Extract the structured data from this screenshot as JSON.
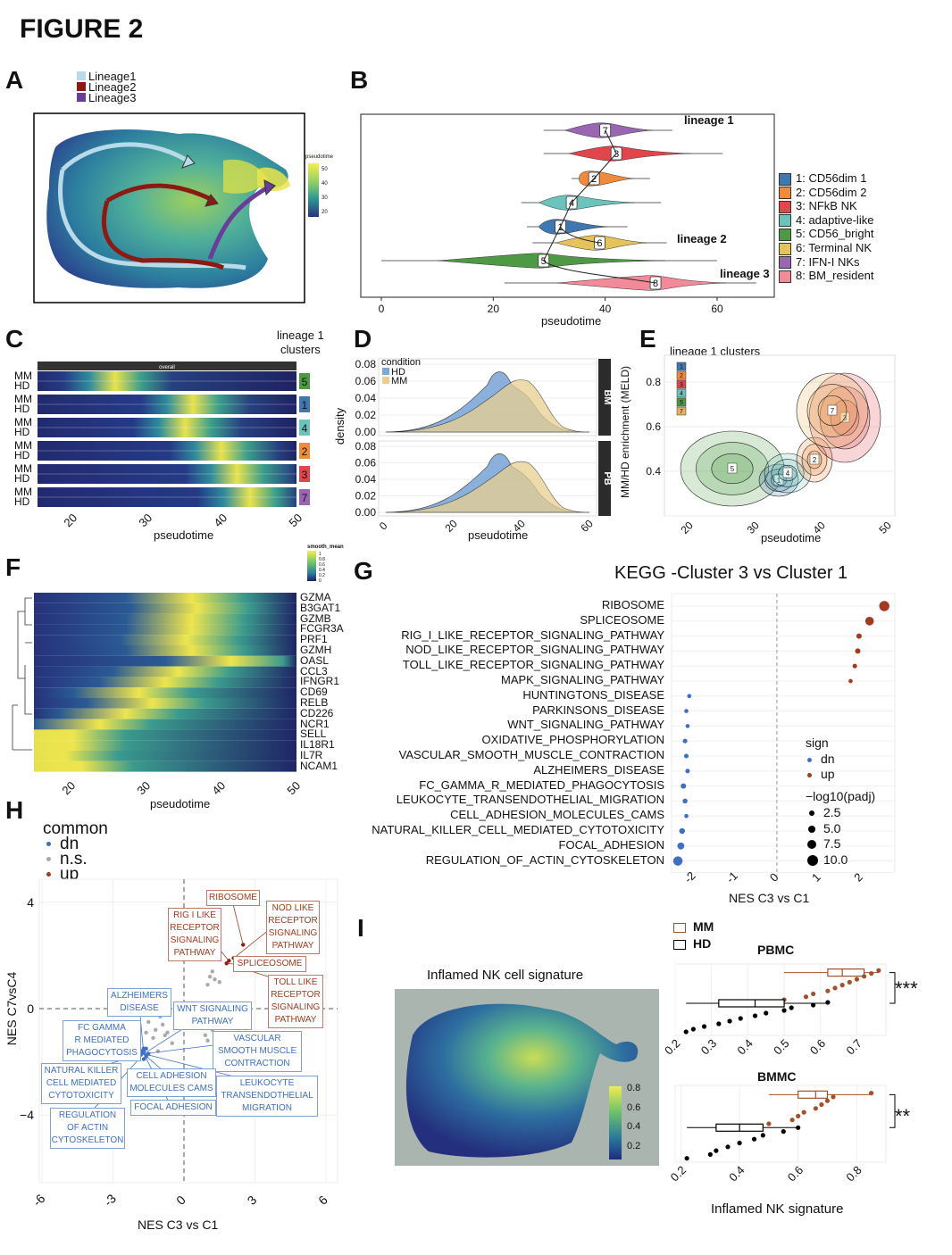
{
  "figure_title": "FIGURE 2",
  "panels": {
    "A": {
      "label": "A",
      "legend": [
        "Lineage1",
        "Lineage2",
        "Lineage3"
      ],
      "legend_colors": [
        "#b9dbe9",
        "#8b1a12",
        "#6a3d9a"
      ],
      "colorbar_title": "pseudotime",
      "colorbar_ticks": [
        "50",
        "40",
        "30",
        "20"
      ]
    },
    "B": {
      "label": "B",
      "xlabel": "pseudotime",
      "xticks": [
        "0",
        "20",
        "40",
        "60"
      ],
      "lineage_labels": [
        "lineage 1",
        "lineage 2",
        "lineage 3"
      ],
      "legend": [
        {
          "id": "1",
          "name": "1: CD56dim 1",
          "color": "#3f78b1"
        },
        {
          "id": "2",
          "name": "2: CD56dim 2",
          "color": "#f08a3c"
        },
        {
          "id": "3",
          "name": "3: NFkB NK",
          "color": "#e0464b"
        },
        {
          "id": "4",
          "name": "4: adaptive-like",
          "color": "#6cc3bc"
        },
        {
          "id": "5",
          "name": "5: CD56_bright",
          "color": "#4e9a44"
        },
        {
          "id": "6",
          "name": "6: Terminal NK",
          "color": "#e6c25a"
        },
        {
          "id": "7",
          "name": "7: IFN-I NKs",
          "color": "#9a65b2"
        },
        {
          "id": "8",
          "name": "8: BM_resident",
          "color": "#f28a9a"
        }
      ],
      "violins": [
        {
          "id": "7",
          "x": 40
        },
        {
          "id": "3",
          "x": 42
        },
        {
          "id": "2",
          "x": 38
        },
        {
          "id": "4",
          "x": 34
        },
        {
          "id": "1",
          "x": 32
        },
        {
          "id": "6",
          "x": 39
        },
        {
          "id": "5",
          "x": 29
        },
        {
          "id": "8",
          "x": 49
        }
      ]
    },
    "C": {
      "label": "C",
      "header": "lineage 1\nclusters",
      "overall": "overall",
      "row_labels": [
        "MM",
        "HD"
      ],
      "clusters": [
        "5",
        "1",
        "4",
        "2",
        "3",
        "7"
      ],
      "xlabel": "pseudotime",
      "xticks": [
        "20",
        "30",
        "40",
        "50"
      ]
    },
    "D": {
      "label": "D",
      "ylabel": "density",
      "xlabel": "pseudotime",
      "condition_title": "condition",
      "conditions": [
        "HD",
        "MM"
      ],
      "facets": [
        "BM",
        "PB"
      ],
      "yticks": [
        "0.08",
        "0.06",
        "0.04",
        "0.02",
        "0.00"
      ],
      "xticks": [
        "0",
        "20",
        "40",
        "60"
      ]
    },
    "E": {
      "label": "E",
      "title": "lineage 1 clusters",
      "ylabel": "MM/HD enrichment (MELD)",
      "xlabel": "pseudotime",
      "yticks": [
        "0.8",
        "0.6",
        "0.4"
      ],
      "xticks": [
        "20",
        "30",
        "40",
        "50"
      ],
      "legend_ids": [
        "1",
        "2",
        "3",
        "4",
        "5",
        "7"
      ]
    },
    "F": {
      "label": "F",
      "colorbar_title": "smooth_mean",
      "colorbar_ticks": [
        "1",
        "0.8",
        "0.6",
        "0.4",
        "0.2",
        "0"
      ],
      "genes": [
        "GZMA",
        "B3GAT1",
        "GZMB",
        "FCGR3A",
        "PRF1",
        "GZMH",
        "OASL",
        "CCL3",
        "IFNGR1",
        "CD69",
        "RELB",
        "CD226",
        "NCR1",
        "SELL",
        "IL18R1",
        "IL7R",
        "NCAM1"
      ],
      "xlabel": "pseudotime",
      "xticks": [
        "20",
        "30",
        "40",
        "50"
      ]
    },
    "G": {
      "label": "G",
      "title": "KEGG -Cluster 3 vs Cluster 1",
      "xlabel": "NES C3 vs C1",
      "xticks": [
        "-2",
        "-1",
        "0",
        "1",
        "2"
      ],
      "sign_title": "sign",
      "sign_items": [
        "dn",
        "up"
      ],
      "size_title": "−log10(padj)",
      "size_items": [
        "2.5",
        "5.0",
        "7.5",
        "10.0"
      ],
      "pathways": [
        "RIBOSOME",
        "SPLICEOSOME",
        "RIG_I_LIKE_RECEPTOR_SIGNALING_PATHWAY",
        "NOD_LIKE_RECEPTOR_SIGNALING_PATHWAY",
        "TOLL_LIKE_RECEPTOR_SIGNALING_PATHWAY",
        "MAPK_SIGNALING_PATHWAY",
        "HUNTINGTONS_DISEASE",
        "PARKINSONS_DISEASE",
        "WNT_SIGNALING_PATHWAY",
        "OXIDATIVE_PHOSPHORYLATION",
        "VASCULAR_SMOOTH_MUSCLE_CONTRACTION",
        "ALZHEIMERS_DISEASE",
        "FC_GAMMA_R_MEDIATED_PHAGOCYTOSIS",
        "LEUKOCYTE_TRANSENDOTHELIAL_MIGRATION",
        "CELL_ADHESION_MOLECULES_CAMS",
        "NATURAL_KILLER_CELL_MEDIATED_CYTOTOXICITY",
        "FOCAL_ADHESION",
        "REGULATION_OF_ACTIN_CYTOSKELETON"
      ]
    },
    "H": {
      "label": "H",
      "legend_title": "common",
      "legend_items": [
        "dn",
        "n.s.",
        "up"
      ],
      "xlabel": "NES C3 vs C1",
      "ylabel": "NES C7vsC4",
      "xticks": [
        "-6",
        "-3",
        "0",
        "3",
        "6"
      ],
      "yticks": [
        "4",
        "0",
        "−4"
      ],
      "up_labels": [
        "RIBOSOME",
        "RIG I LIKE\nRECEPTOR\nSIGNALING\nPATHWAY",
        "NOD LIKE\nRECEPTOR\nSIGNALING\nPATHWAY",
        "SPLICEOSOME",
        "TOLL LIKE\nRECEPTOR\nSIGNALING\nPATHWAY"
      ],
      "dn_labels": [
        "ALZHEIMERS\nDISEASE",
        "WNT SIGNALING\nPATHWAY",
        "FC GAMMA\nR MEDIATED\nPHAGOCYTOSIS",
        "VASCULAR\nSMOOTH MUSCLE\nCONTRACTION",
        "NATURAL KILLER\nCELL MEDIATED\nCYTOTOXICITY",
        "CELL ADHESION\nMOLECULES CAMS",
        "LEUKOCYTE\nTRANSENDOTHELIAL\nMIGRATION",
        "FOCAL ADHESION",
        "REGULATION\nOF ACTIN\nCYTOSKELETON"
      ]
    },
    "I": {
      "label": "I",
      "umap_title": "Inflamed NK cell signature",
      "colorbar_ticks": [
        "0.8",
        "0.6",
        "0.4",
        "0.2"
      ],
      "legend": [
        "MM",
        "HD"
      ],
      "pbmc": "PBMC",
      "bmmc": "BMMC",
      "pbmc_sig": "***",
      "bmmc_sig": "**",
      "xlabel": "Inflamed NK signature",
      "pbmc_xticks": [
        "0.2",
        "0.3",
        "0.4",
        "0.5",
        "0.6",
        "0.7"
      ],
      "bmmc_xticks": [
        "0.2",
        "0.4",
        "0.6",
        "0.8"
      ]
    }
  },
  "chart_data": [
    {
      "type": "scatter",
      "title": "KEGG -Cluster 3 vs Cluster 1",
      "xlabel": "NES C3 vs C1",
      "categories": [
        "RIBOSOME",
        "SPLICEOSOME",
        "RIG_I_LIKE_RECEPTOR_SIGNALING_PATHWAY",
        "NOD_LIKE_RECEPTOR_SIGNALING_PATHWAY",
        "TOLL_LIKE_RECEPTOR_SIGNALING_PATHWAY",
        "MAPK_SIGNALING_PATHWAY",
        "HUNTINGTONS_DISEASE",
        "PARKINSONS_DISEASE",
        "WNT_SIGNALING_PATHWAY",
        "OXIDATIVE_PHOSPHORYLATION",
        "VASCULAR_SMOOTH_MUSCLE_CONTRACTION",
        "ALZHEIMERS_DISEASE",
        "FC_GAMMA_R_MEDIATED_PHAGOCYTOSIS",
        "LEUKOCYTE_TRANSENDOTHELIAL_MIGRATION",
        "CELL_ADHESION_MOLECULES_CAMS",
        "NATURAL_KILLER_CELL_MEDIATED_CYTOTOXICITY",
        "FOCAL_ADHESION",
        "REGULATION_OF_ACTIN_CYTOSKELETON"
      ],
      "values": [
        2.55,
        2.2,
        1.95,
        1.92,
        1.85,
        1.75,
        -2.08,
        -2.15,
        -2.12,
        -2.18,
        -2.15,
        -2.12,
        -2.22,
        -2.18,
        -2.15,
        -2.25,
        -2.28,
        -2.35
      ],
      "sign": [
        "up",
        "up",
        "up",
        "up",
        "up",
        "up",
        "dn",
        "dn",
        "dn",
        "dn",
        "dn",
        "dn",
        "dn",
        "dn",
        "dn",
        "dn",
        "dn",
        "dn"
      ],
      "neglog10_padj": [
        10,
        8,
        4,
        4,
        3,
        2.5,
        2.5,
        2.5,
        2.5,
        3,
        3,
        3,
        4,
        3.5,
        2.5,
        4.5,
        6,
        9
      ],
      "xlim": [
        -2.5,
        2.8
      ]
    },
    {
      "type": "box",
      "title": "PBMC",
      "xlabel": "Inflamed NK signature",
      "series": [
        {
          "name": "MM",
          "values": [
            0.5,
            0.56,
            0.58,
            0.62,
            0.64,
            0.66,
            0.68,
            0.7,
            0.72,
            0.74,
            0.76
          ]
        },
        {
          "name": "HD",
          "values": [
            0.23,
            0.25,
            0.28,
            0.32,
            0.35,
            0.38,
            0.42,
            0.45,
            0.5,
            0.52,
            0.58,
            0.62
          ]
        }
      ],
      "xlim": [
        0.2,
        0.78
      ]
    },
    {
      "type": "box",
      "title": "BMMC",
      "xlabel": "Inflamed NK signature",
      "series": [
        {
          "name": "MM",
          "values": [
            0.5,
            0.58,
            0.6,
            0.62,
            0.66,
            0.68,
            0.7,
            0.72,
            0.85
          ]
        },
        {
          "name": "HD",
          "values": [
            0.22,
            0.3,
            0.32,
            0.36,
            0.4,
            0.45,
            0.48,
            0.55,
            0.6
          ]
        }
      ],
      "xlim": [
        0.18,
        0.9
      ]
    }
  ]
}
